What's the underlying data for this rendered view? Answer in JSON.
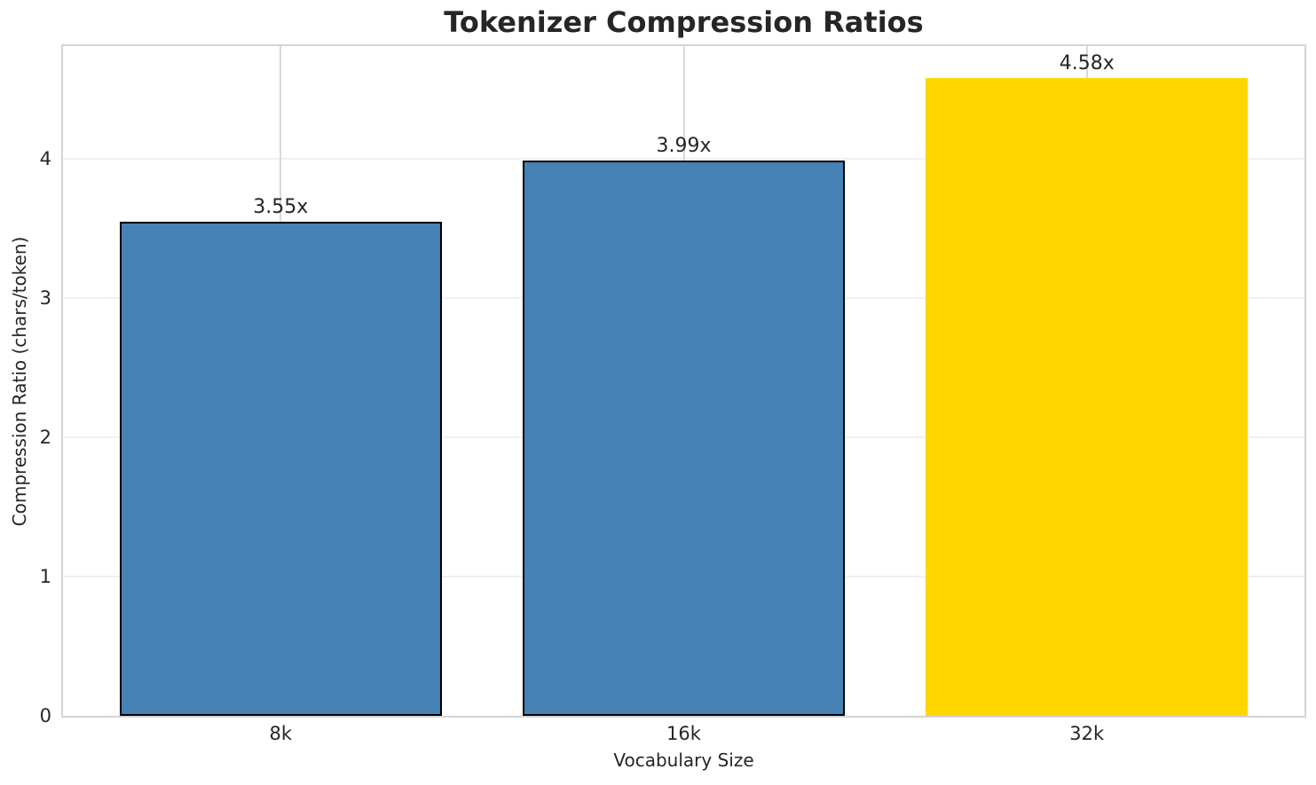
{
  "chart_data": {
    "type": "bar",
    "title": "Tokenizer Compression Ratios",
    "xlabel": "Vocabulary Size",
    "ylabel": "Compression Ratio (chars/token)",
    "categories": [
      "8k",
      "16k",
      "32k"
    ],
    "values": [
      3.55,
      3.99,
      4.58
    ],
    "bar_labels": [
      "3.55x",
      "3.99x",
      "4.58x"
    ],
    "bar_colors": [
      "#4682B4",
      "#4682B4",
      "#FFD700"
    ],
    "bar_edge_colors": [
      "#000000",
      "#000000",
      "none"
    ],
    "yticks": [
      0,
      1,
      2,
      3,
      4
    ],
    "ylim": [
      0,
      4.81
    ],
    "grid": true,
    "legend_position": "none",
    "background_color": "#ffffff",
    "text_color": "#262626",
    "spine_color": "#d4d4d4",
    "grid_color_horizontal": "#f0f0f0",
    "grid_color_vertical": "#d9d9d9"
  }
}
